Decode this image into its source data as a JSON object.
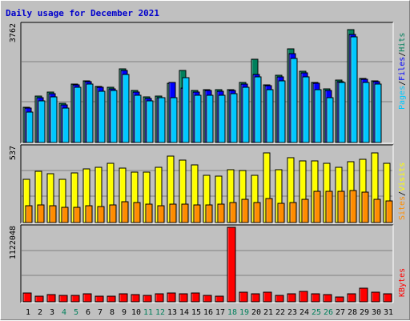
{
  "title": "Daily usage for December 2021",
  "colors": {
    "background": "#c0c0c0",
    "panel": "#c0c0c0",
    "grid": "#808080",
    "title": "#0000cc",
    "hits": "#00805c",
    "files": "#0000ff",
    "pages": "#00c8ff",
    "visits": "#ffff00",
    "sites": "#ff8c00",
    "kbytes": "#ff0000",
    "weekend_day": "#00805c",
    "weekday_day": "#000000"
  },
  "chart_data": [
    {
      "type": "bar",
      "name": "hits-files-pages",
      "ylim": [
        0,
        3762
      ],
      "max_label": "3762",
      "categories": [
        "1",
        "2",
        "3",
        "4",
        "5",
        "6",
        "7",
        "8",
        "9",
        "10",
        "11",
        "12",
        "13",
        "14",
        "15",
        "16",
        "17",
        "18",
        "19",
        "20",
        "21",
        "22",
        "23",
        "24",
        "25",
        "26",
        "27",
        "28",
        "29",
        "30",
        "31"
      ],
      "series": [
        {
          "name": "Hits",
          "values": [
            1130,
            1480,
            1600,
            1250,
            1880,
            1980,
            1800,
            1760,
            2350,
            1660,
            1460,
            1480,
            1900,
            2300,
            1660,
            1700,
            1680,
            1700,
            1910,
            2650,
            1850,
            2150,
            3000,
            2270,
            1930,
            1710,
            1990,
            3620,
            2060,
            1980,
            null
          ]
        },
        {
          "name": "Files",
          "values": [
            1100,
            1440,
            1560,
            1200,
            1840,
            1940,
            1760,
            1720,
            2300,
            1620,
            1420,
            1440,
            1910,
            1750,
            1620,
            1660,
            1640,
            1660,
            1870,
            2170,
            1810,
            2110,
            2850,
            2230,
            1890,
            1670,
            1950,
            3450,
            2020,
            1940,
            null
          ]
        },
        {
          "name": "Pages",
          "values": [
            980,
            1340,
            1460,
            1100,
            1760,
            1880,
            1640,
            1660,
            2180,
            1520,
            1340,
            1440,
            1440,
            2080,
            1520,
            1520,
            1520,
            1560,
            1760,
            2100,
            1680,
            1980,
            2680,
            2110,
            1700,
            1440,
            1920,
            3380,
            1920,
            1860,
            null
          ]
        }
      ]
    },
    {
      "type": "bar",
      "name": "visits-sites",
      "ylim": [
        0,
        537
      ],
      "max_label": "537",
      "categories": [
        "1",
        "2",
        "3",
        "4",
        "5",
        "6",
        "7",
        "8",
        "9",
        "10",
        "11",
        "12",
        "13",
        "14",
        "15",
        "16",
        "17",
        "18",
        "19",
        "20",
        "21",
        "22",
        "23",
        "24",
        "25",
        "26",
        "27",
        "28",
        "29",
        "30",
        "31"
      ],
      "series": [
        {
          "name": "Visits",
          "values": [
            310,
            365,
            350,
            310,
            355,
            385,
            395,
            425,
            390,
            360,
            360,
            395,
            475,
            445,
            410,
            335,
            330,
            375,
            370,
            335,
            495,
            375,
            460,
            440,
            440,
            420,
            395,
            435,
            450,
            495,
            420
          ]
        },
        {
          "name": "Sites",
          "values": [
            120,
            125,
            120,
            110,
            110,
            120,
            115,
            125,
            150,
            140,
            130,
            120,
            130,
            130,
            125,
            125,
            130,
            140,
            165,
            140,
            170,
            135,
            145,
            165,
            220,
            225,
            220,
            230,
            215,
            165,
            155
          ]
        }
      ]
    },
    {
      "type": "bar",
      "name": "kbytes",
      "ylim": [
        0,
        1122048
      ],
      "max_label": "1122048",
      "categories": [
        "1",
        "2",
        "3",
        "4",
        "5",
        "6",
        "7",
        "8",
        "9",
        "10",
        "11",
        "12",
        "13",
        "14",
        "15",
        "16",
        "17",
        "18",
        "19",
        "20",
        "21",
        "22",
        "23",
        "24",
        "25",
        "26",
        "27",
        "28",
        "29",
        "30",
        "31"
      ],
      "series": [
        {
          "name": "KBytes",
          "values": [
            130000,
            90000,
            105000,
            95000,
            100000,
            115000,
            85000,
            90000,
            125000,
            110000,
            100000,
            115000,
            135000,
            115000,
            130000,
            100000,
            85000,
            1122048,
            150000,
            115000,
            140000,
            95000,
            115000,
            160000,
            125000,
            110000,
            75000,
            125000,
            210000,
            140000,
            115000
          ]
        }
      ]
    }
  ],
  "days": [
    "1",
    "2",
    "3",
    "4",
    "5",
    "6",
    "7",
    "8",
    "9",
    "10",
    "11",
    "12",
    "13",
    "14",
    "15",
    "16",
    "17",
    "18",
    "19",
    "20",
    "21",
    "22",
    "23",
    "24",
    "25",
    "26",
    "27",
    "28",
    "29",
    "30",
    "31"
  ],
  "weekend_days": [
    4,
    5,
    11,
    12,
    18,
    19,
    25,
    26
  ],
  "axis_labels": {
    "panel1": [
      {
        "text": "Pages",
        "color": "#00c8ff"
      },
      {
        "text": "/",
        "color": "#000000"
      },
      {
        "text": "Files",
        "color": "#0000ff"
      },
      {
        "text": "/",
        "color": "#000000"
      },
      {
        "text": "Hits",
        "color": "#00805c"
      }
    ],
    "panel2": [
      {
        "text": "Sites",
        "color": "#ff8c00"
      },
      {
        "text": "/",
        "color": "#000000"
      },
      {
        "text": "Visits",
        "color": "#ffff00"
      }
    ],
    "panel3": [
      {
        "text": "KBytes",
        "color": "#ff0000"
      }
    ]
  }
}
